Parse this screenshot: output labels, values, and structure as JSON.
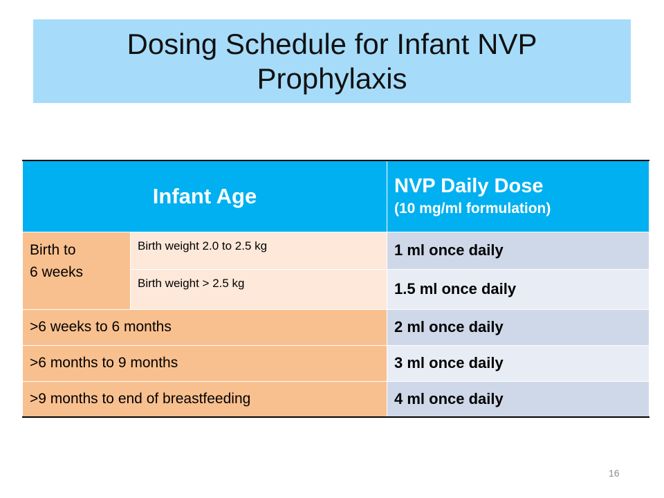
{
  "title": {
    "line1": "Dosing Schedule for Infant NVP",
    "line2": "Prophylaxis"
  },
  "table": {
    "header": {
      "age": "Infant Age",
      "dose": "NVP Daily Dose",
      "dose_sub": "(10 mg/ml formulation)"
    },
    "birth_group": {
      "label_line1": "Birth to",
      "label_line2": "6 weeks",
      "rows": [
        {
          "weight": "Birth weight 2.0 to 2.5 kg",
          "dose": "1 ml once daily"
        },
        {
          "weight": "Birth weight > 2.5 kg",
          "dose": "1.5 ml once daily"
        }
      ]
    },
    "rows": [
      {
        "age": ">6 weeks to 6 months",
        "dose": "2 ml once daily"
      },
      {
        "age": ">6 months to 9 months",
        "dose": "3 ml once daily"
      },
      {
        "age": ">9 months to end of breastfeeding",
        "dose": "4 ml once daily"
      }
    ]
  },
  "page_number": "16",
  "colors": {
    "title_band": "#a6dcfa",
    "header": "#00b0f0",
    "age_cell": "#f9c08f",
    "sub_age_cell": "#fde8da",
    "dose_dark": "#cfd8e8",
    "dose_light": "#e8edf5"
  }
}
